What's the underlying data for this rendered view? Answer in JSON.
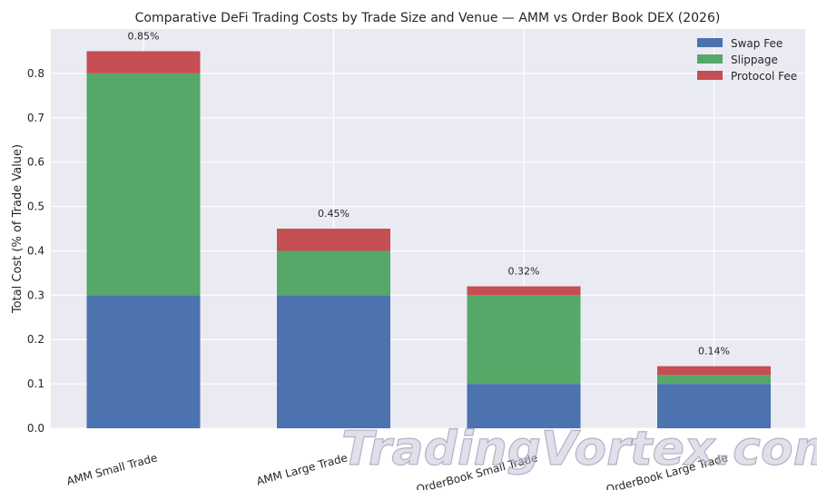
{
  "chart_data": {
    "type": "bar",
    "stacked": true,
    "title": "Comparative DeFi Trading Costs by Trade Size and Venue — AMM vs Order Book DEX (2026)",
    "xlabel": "",
    "ylabel": "Total Cost (% of Trade Value)",
    "ylim": [
      0,
      0.9
    ],
    "yticks": [
      "0.0",
      "0.1",
      "0.2",
      "0.3",
      "0.4",
      "0.5",
      "0.6",
      "0.7",
      "0.8"
    ],
    "grid": true,
    "legend_position": "top-right",
    "categories": [
      "AMM Small Trade",
      "AMM Large Trade",
      "OrderBook Small Trade",
      "OrderBook Large Trade"
    ],
    "series": [
      {
        "name": "Swap Fee",
        "color": "#4c72b0",
        "values": [
          0.3,
          0.3,
          0.1,
          0.1
        ]
      },
      {
        "name": "Slippage",
        "color": "#55a868",
        "values": [
          0.5,
          0.1,
          0.2,
          0.02
        ]
      },
      {
        "name": "Protocol Fee",
        "color": "#c44e52",
        "values": [
          0.05,
          0.05,
          0.02,
          0.02
        ]
      }
    ],
    "totals": [
      0.85,
      0.45,
      0.32,
      0.14
    ],
    "total_labels": [
      "0.85%",
      "0.45%",
      "0.32%",
      "0.14%"
    ]
  },
  "watermark": {
    "text": "TradingVortex.com"
  }
}
